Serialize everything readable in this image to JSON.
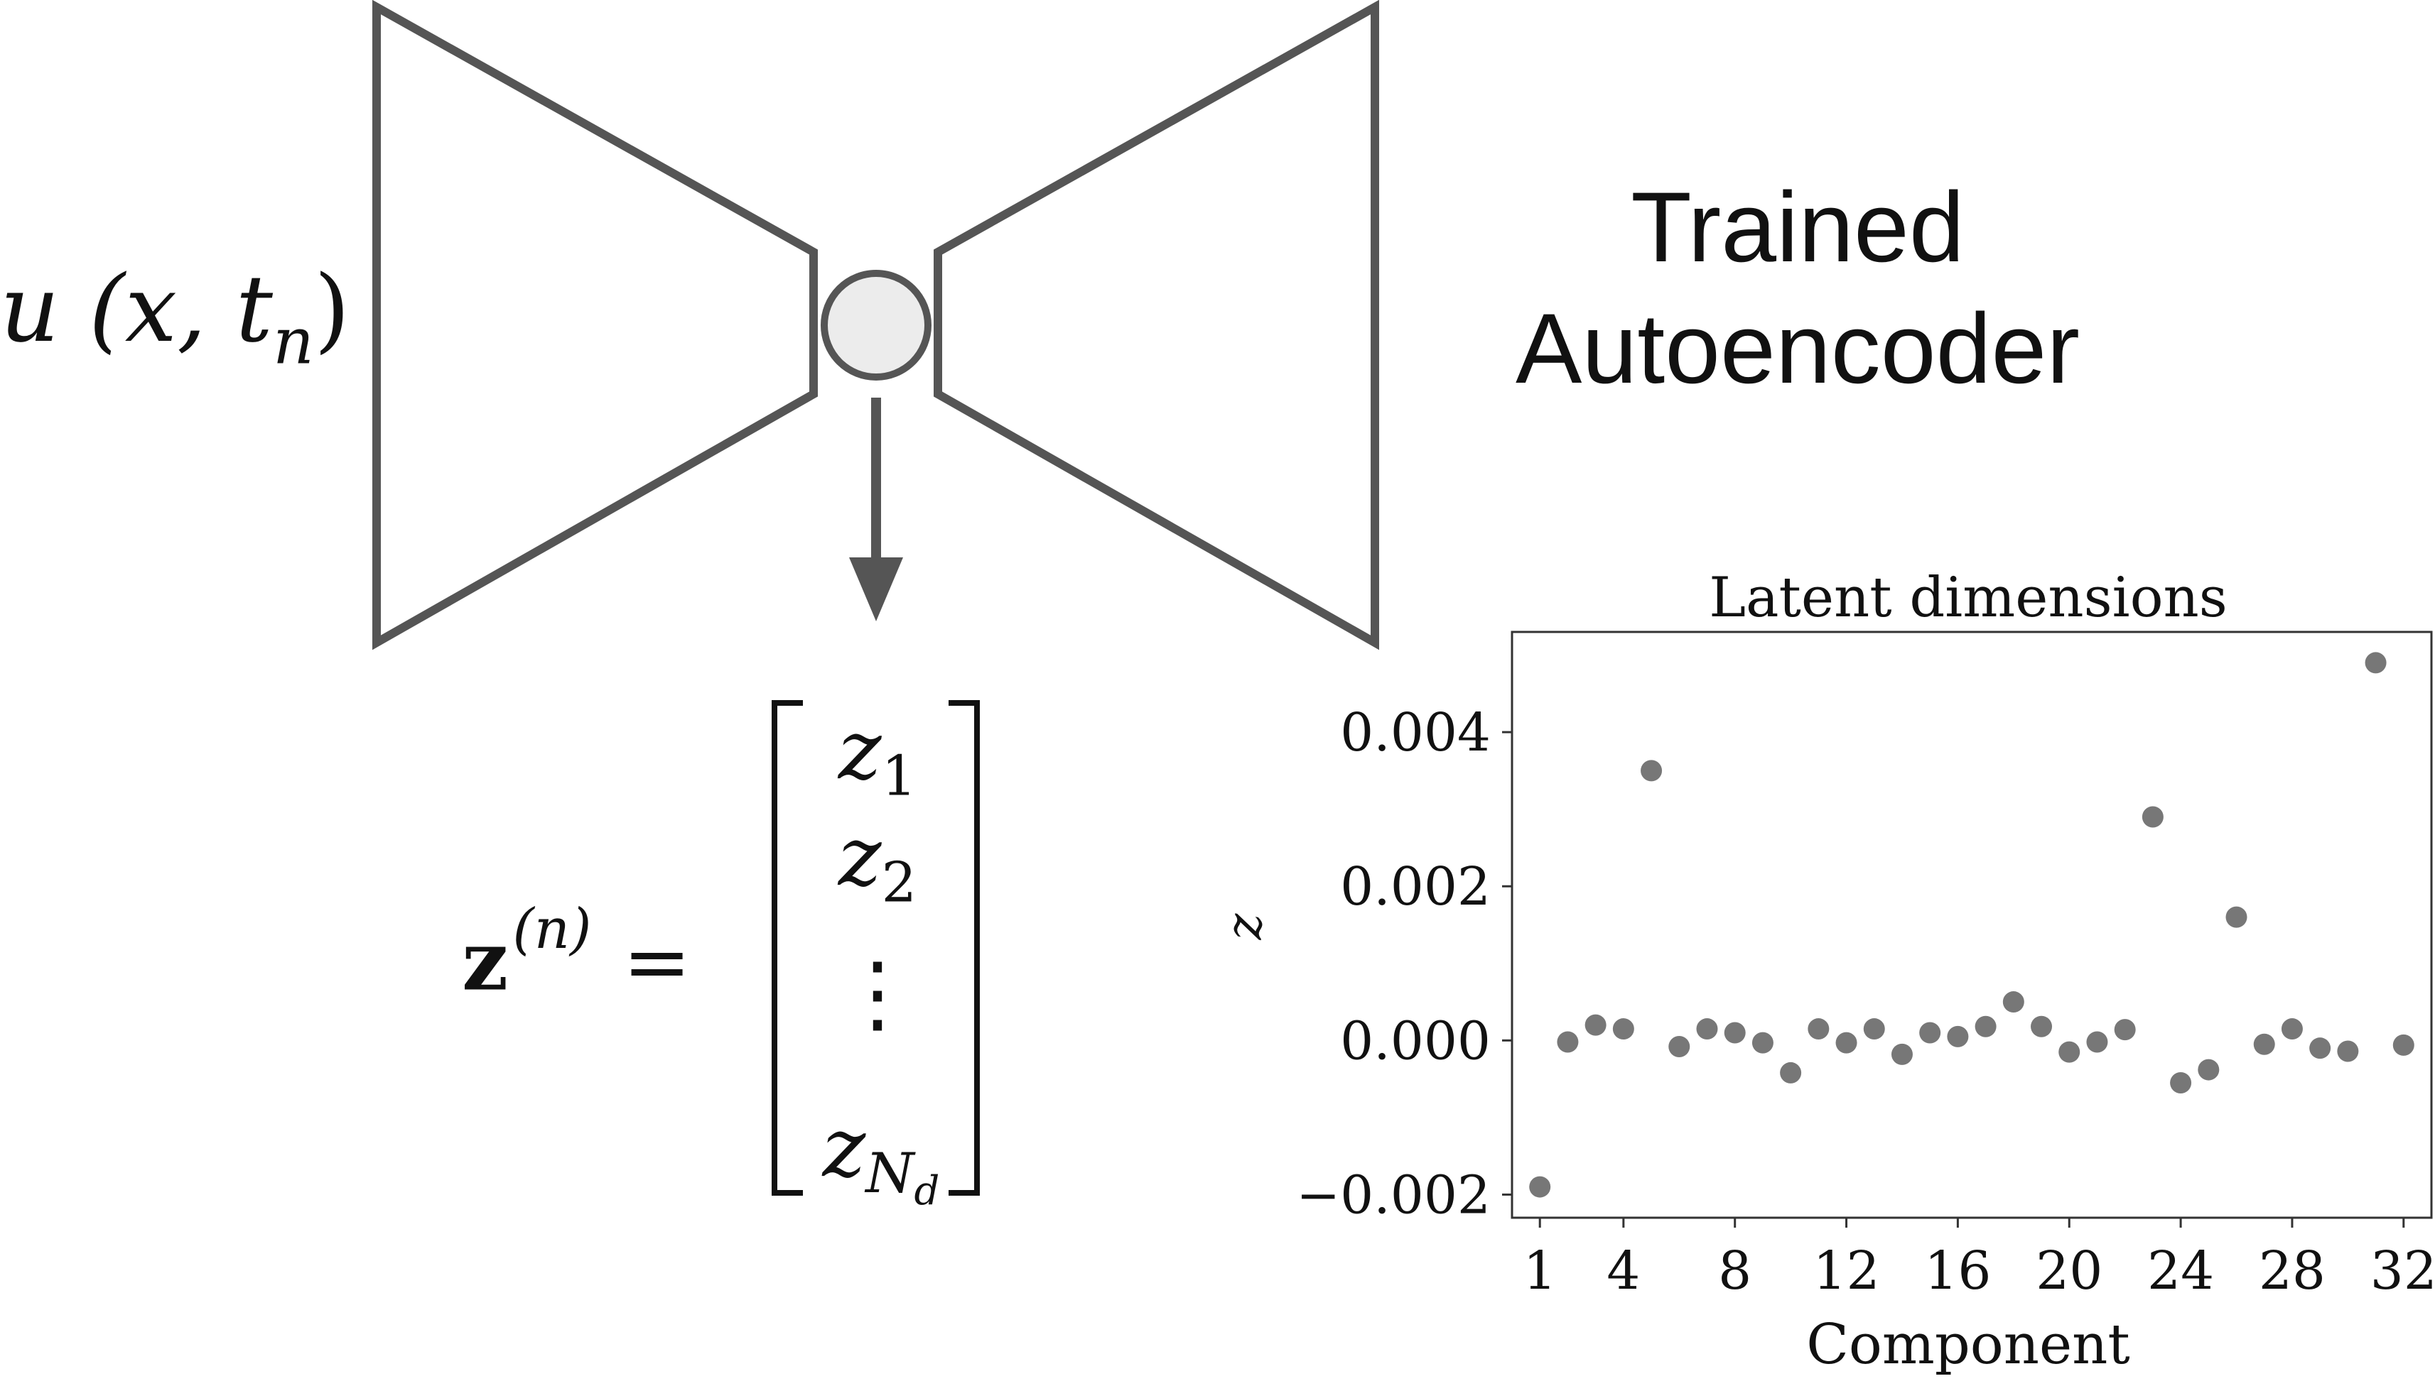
{
  "diagram": {
    "input_label": "u (x, t",
    "input_label_sub": "n",
    "input_label_close": ")",
    "title_line1": "Trained",
    "title_line2": "Autoencoder",
    "latent_lhs": "z",
    "latent_lhs_sup": "(n)",
    "equals": "=",
    "vector_entries": [
      "z",
      "z",
      "z"
    ],
    "vector_subs": [
      "1",
      "2",
      "N"
    ],
    "vector_subsub": "d",
    "vector_dots": "⋮",
    "colors": {
      "stroke": "#555555",
      "node_fill": "#ececec",
      "marker": "#777777",
      "text": "#111111"
    }
  },
  "chart_data": {
    "type": "scatter",
    "title": "Latent dimensions",
    "xlabel": "Component",
    "ylabel": "z",
    "xlim": [
      0,
      33
    ],
    "ylim": [
      -0.0023,
      0.0053
    ],
    "xticks": [
      1,
      4,
      8,
      12,
      16,
      20,
      24,
      28,
      32
    ],
    "yticks": [
      -0.002,
      0.0,
      0.002,
      0.004
    ],
    "ytick_labels": [
      "−0.002",
      "0.000",
      "0.002",
      "0.004"
    ],
    "grid": false,
    "series": [
      {
        "x": [
          1,
          2,
          3,
          4,
          5,
          6,
          7,
          8,
          9,
          10,
          11,
          12,
          13,
          14,
          15,
          16,
          17,
          18,
          19,
          20,
          21,
          22,
          23,
          24,
          25,
          26,
          27,
          28,
          29,
          30,
          31,
          32
        ],
        "y": [
          -0.0019,
          -2e-05,
          0.0002,
          0.00015,
          0.0035,
          -8e-05,
          0.00015,
          0.0001,
          -3e-05,
          -0.00042,
          0.00015,
          -3e-05,
          0.00015,
          -0.00018,
          0.0001,
          5e-05,
          0.00018,
          0.0005,
          0.00018,
          -0.00015,
          -2e-05,
          0.00014,
          0.0029,
          -0.00055,
          -0.00038,
          0.0016,
          -5e-05,
          0.00015,
          -0.0001,
          -0.00014,
          0.0049,
          -6e-05
        ]
      }
    ]
  }
}
